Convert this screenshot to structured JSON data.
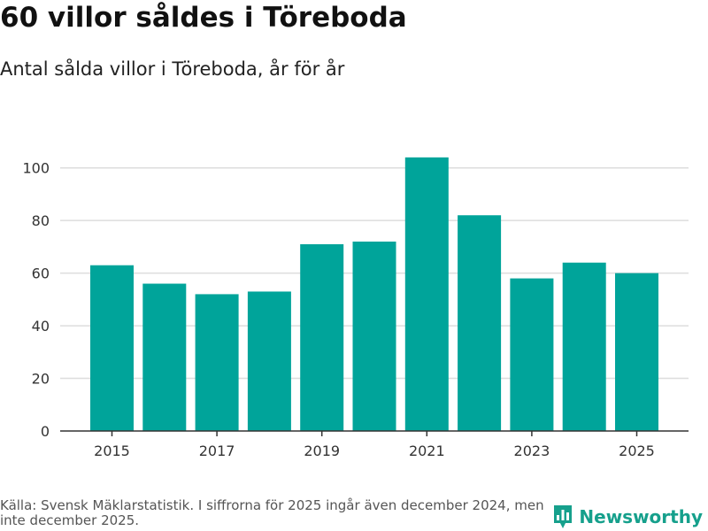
{
  "title": "60 villor såldes i Töreboda",
  "subtitle": "Antal sålda villor i Töreboda, år för år",
  "footer": {
    "source": "Källa: Svensk Mäklarstatistik. I siffrorna för 2025 ingår även december 2024, men inte december 2025.",
    "brand": "Newsworthy"
  },
  "colors": {
    "bar": "#00a49a",
    "grid": "#dddddd",
    "axis": "#333333",
    "brand": "#16a08c"
  },
  "chart_data": {
    "type": "bar",
    "title": "60 villor såldes i Töreboda",
    "subtitle": "Antal sålda villor i Töreboda, år för år",
    "xlabel": "",
    "ylabel": "",
    "categories": [
      "2015",
      "2016",
      "2017",
      "2018",
      "2019",
      "2020",
      "2021",
      "2022",
      "2023",
      "2024",
      "2025"
    ],
    "values": [
      63,
      56,
      52,
      53,
      71,
      72,
      104,
      82,
      58,
      64,
      60
    ],
    "x_tick_labels": [
      "2015",
      "2017",
      "2019",
      "2021",
      "2023",
      "2025"
    ],
    "y_ticks": [
      0,
      20,
      40,
      60,
      80,
      100
    ],
    "ylim": [
      0,
      110
    ],
    "grid": true
  }
}
